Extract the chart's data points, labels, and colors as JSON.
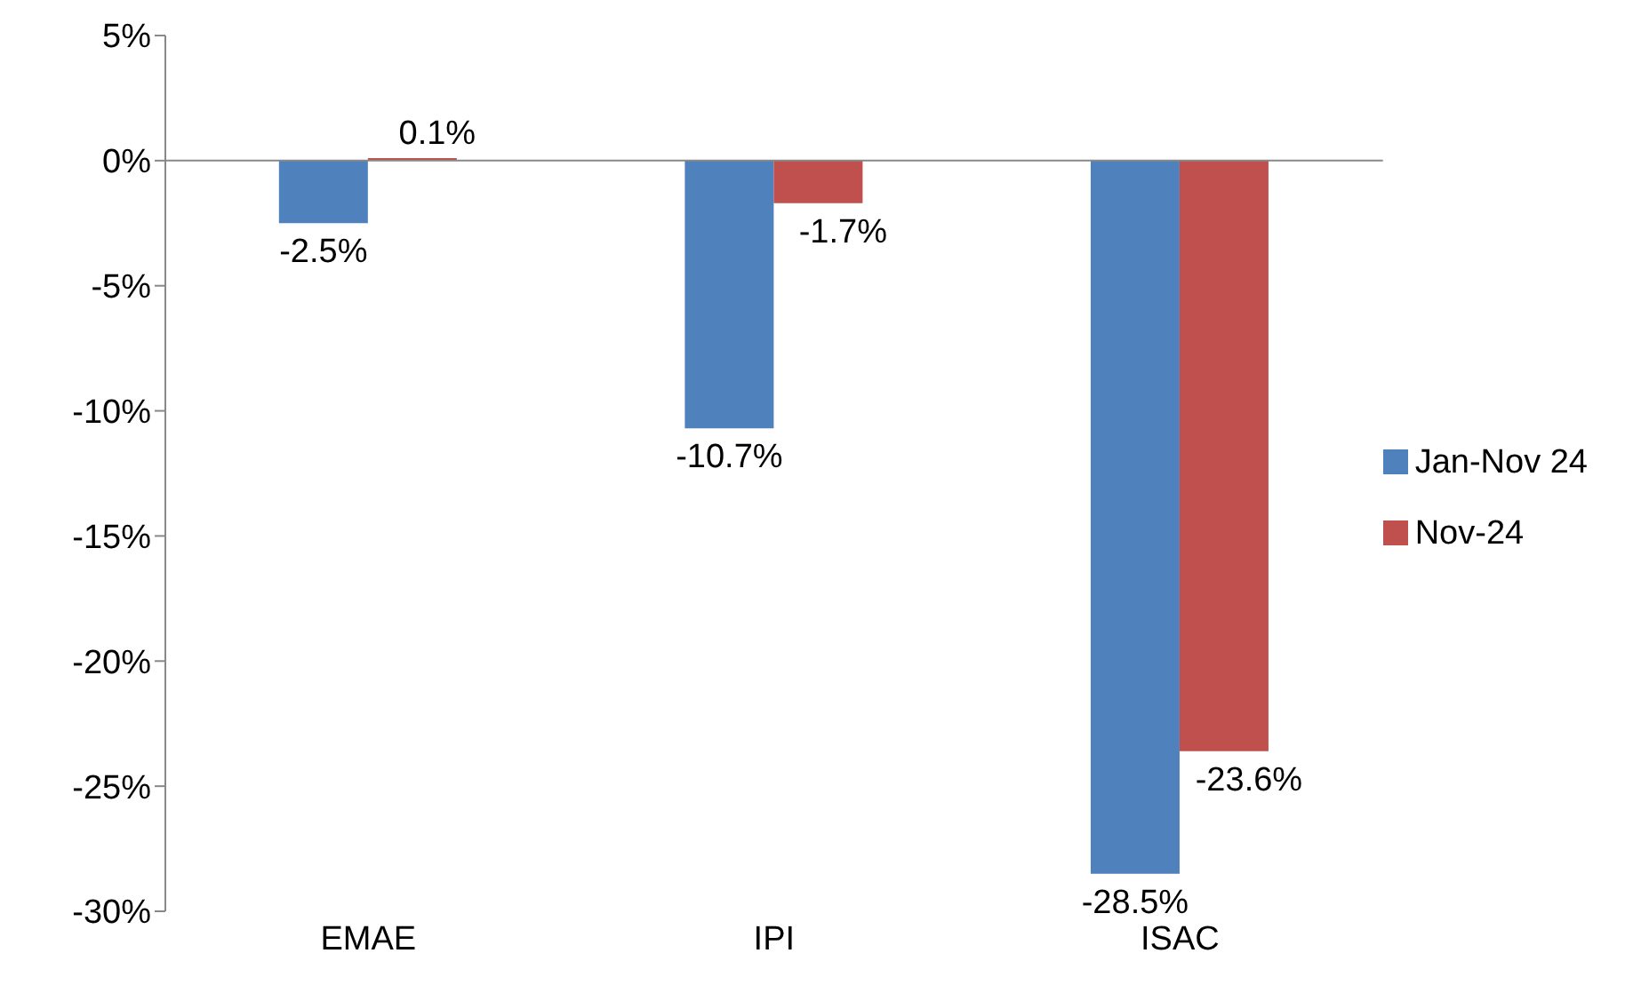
{
  "chart_data": {
    "type": "bar",
    "categories": [
      "EMAE",
      "IPI",
      "ISAC"
    ],
    "series": [
      {
        "name": "Jan-Nov 24",
        "color": "#4f81bd",
        "values": [
          -2.5,
          -10.7,
          -28.5
        ],
        "value_labels": [
          "-2.5%",
          "-10.7%",
          "-28.5%"
        ]
      },
      {
        "name": "Nov-24",
        "color": "#c0504d",
        "values": [
          0.1,
          -1.7,
          -23.6
        ],
        "value_labels": [
          "0.1%",
          "-1.7%",
          "-23.6%"
        ]
      }
    ],
    "ylim": [
      -30,
      5
    ],
    "yticks": [
      {
        "value": 5,
        "label": "5%"
      },
      {
        "value": 0,
        "label": "0%"
      },
      {
        "value": -5,
        "label": "-5%"
      },
      {
        "value": -10,
        "label": "-10%"
      },
      {
        "value": -15,
        "label": "-15%"
      },
      {
        "value": -20,
        "label": "-20%"
      },
      {
        "value": -25,
        "label": "-25%"
      },
      {
        "value": -30,
        "label": "-30%"
      }
    ],
    "legend": "right"
  }
}
